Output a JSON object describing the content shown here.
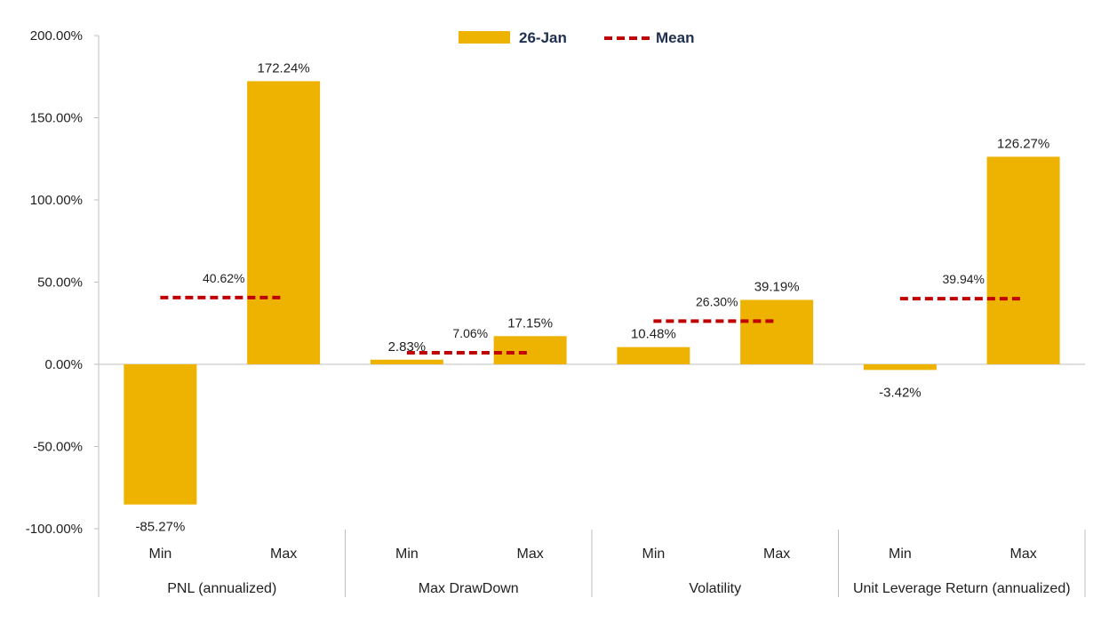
{
  "chart_data": {
    "type": "bar",
    "categories": [
      "Min",
      "Max"
    ],
    "groups": [
      {
        "name": "PNL (annualized)",
        "min": -85.27,
        "max": 172.24,
        "mean": 40.62,
        "min_label": "-85.27%",
        "max_label": "172.24%",
        "mean_label": "40.62%"
      },
      {
        "name": "Max DrawDown",
        "min": 2.83,
        "max": 17.15,
        "mean": 7.06,
        "min_label": "2.83%",
        "max_label": "17.15%",
        "mean_label": "7.06%"
      },
      {
        "name": "Volatility",
        "min": 10.48,
        "max": 39.19,
        "mean": 26.3,
        "min_label": "10.48%",
        "max_label": "39.19%",
        "mean_label": "26.30%"
      },
      {
        "name": "Unit Leverage Return (annualized)",
        "min": -3.42,
        "max": 126.27,
        "mean": 39.94,
        "min_label": "-3.42%",
        "max_label": "126.27%",
        "mean_label": "39.94%"
      }
    ],
    "series": [
      {
        "name": "26-Jan",
        "kind": "bar",
        "color": "#EEB200"
      },
      {
        "name": "Mean",
        "kind": "dashed-line",
        "color": "#C00000"
      }
    ],
    "ylim": [
      -100,
      200
    ],
    "yticks": [
      200,
      150,
      100,
      50,
      0,
      -50,
      -100
    ],
    "ytick_labels": [
      "200.00%",
      "150.00%",
      "100.00%",
      "50.00%",
      "0.00%",
      "-50.00%",
      "-100.00%"
    ],
    "legend_position": "top-center",
    "grid": false
  }
}
